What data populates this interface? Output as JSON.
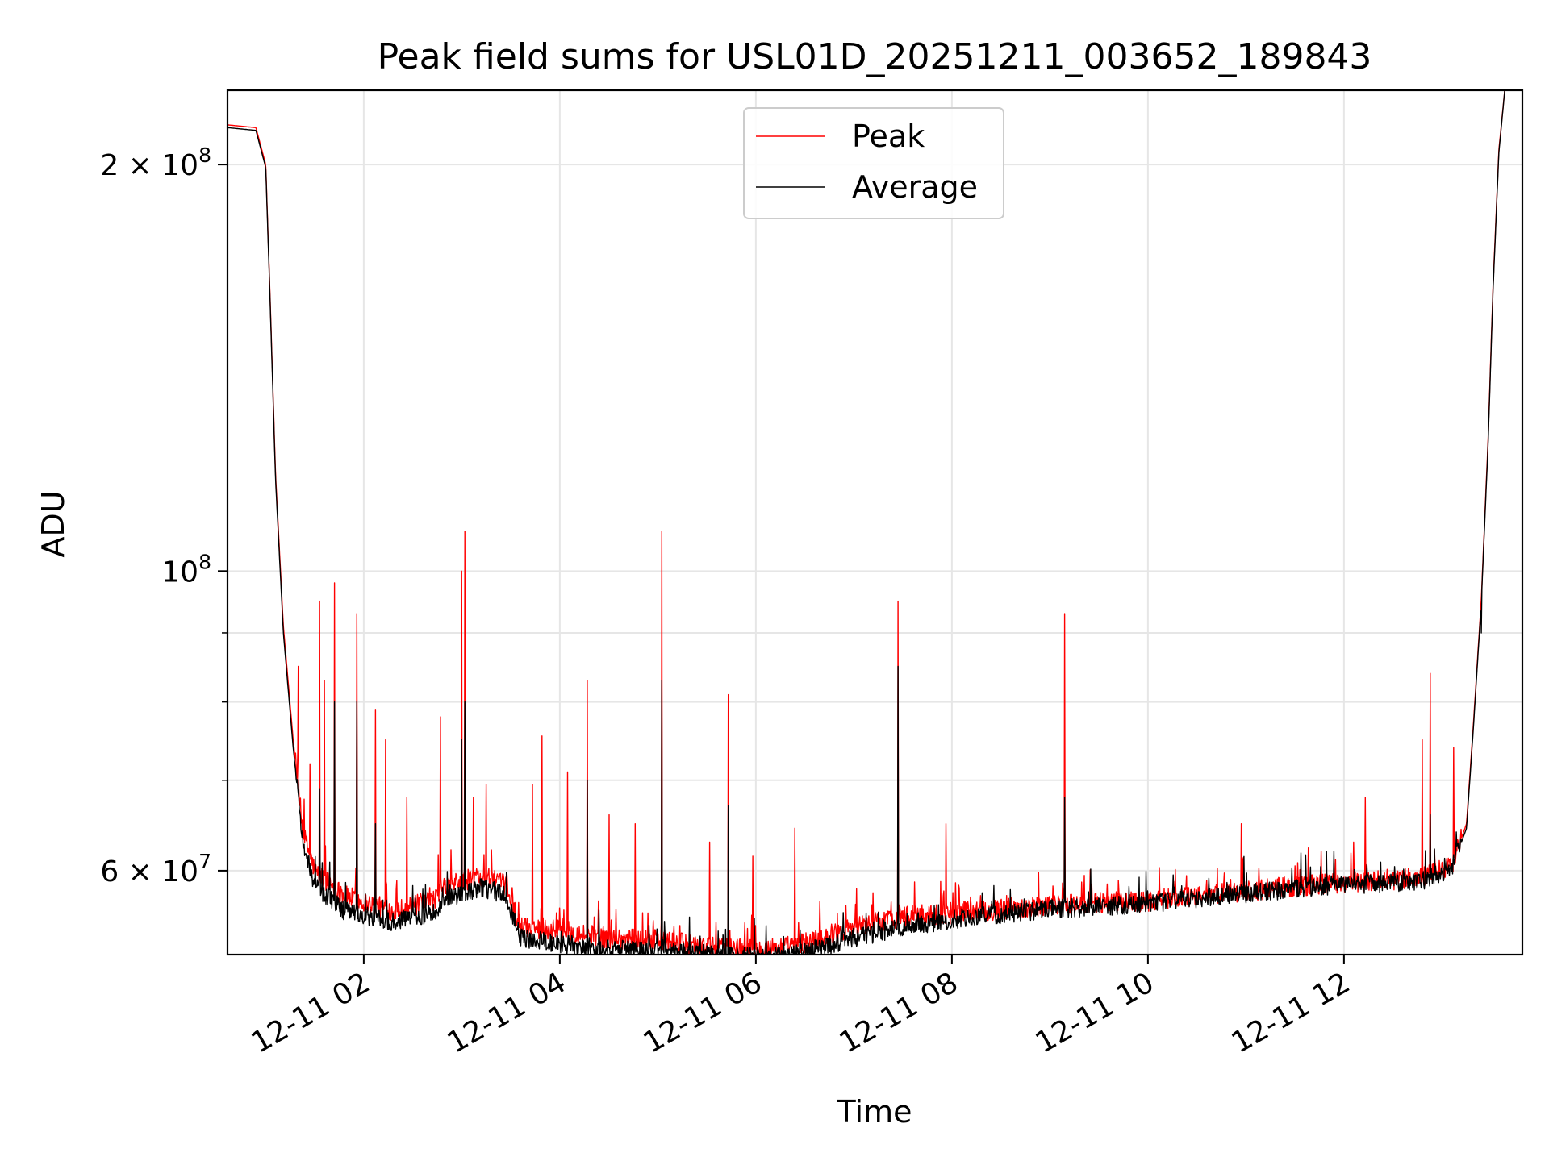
{
  "chart_data": {
    "type": "line",
    "title": "Peak field sums for USL01D_20251211_003652_189843",
    "xlabel": "Time",
    "ylabel": "ADU",
    "yscale": "log",
    "ylim": [
      52000000,
      227000000
    ],
    "xlim": [
      0.61,
      13.82
    ],
    "grid": true,
    "legend_position": "top-center",
    "x_ticks": [
      {
        "value": 2,
        "label": "12-11 02"
      },
      {
        "value": 4,
        "label": "12-11 04"
      },
      {
        "value": 6,
        "label": "12-11 06"
      },
      {
        "value": 8,
        "label": "12-11 08"
      },
      {
        "value": 10,
        "label": "12-11 10"
      },
      {
        "value": 12,
        "label": "12-11 12"
      }
    ],
    "y_major_ticks": [
      {
        "value": 60000000,
        "mantissa": "6",
        "base": "10",
        "exp": "7"
      },
      {
        "value": 100000000,
        "mantissa": "",
        "base": "10",
        "exp": "8"
      },
      {
        "value": 200000000,
        "mantissa": "2",
        "base": "10",
        "exp": "8"
      }
    ],
    "y_minor_grid": [
      70000000,
      80000000,
      90000000
    ],
    "colors": {
      "peak": "#ff0000",
      "average": "#000000",
      "grid": "#e6e6e6"
    },
    "series": [
      {
        "name": "Peak",
        "color": "#ff0000",
        "baseline": [
          [
            0.61,
            214000000.0
          ],
          [
            0.9,
            213000000.0
          ],
          [
            1.0,
            200000000.0
          ],
          [
            1.05,
            155000000.0
          ],
          [
            1.1,
            118000000.0
          ],
          [
            1.18,
            91000000.0
          ],
          [
            1.28,
            75000000.0
          ],
          [
            1.38,
            64000000.0
          ],
          [
            1.5,
            60000000.0
          ],
          [
            1.8,
            57500000.0
          ],
          [
            2.3,
            56000000.0
          ],
          [
            2.7,
            57000000.0
          ],
          [
            2.85,
            58500000.0
          ],
          [
            3.2,
            59500000.0
          ],
          [
            3.45,
            58500000.0
          ],
          [
            3.6,
            54500000.0
          ],
          [
            4.0,
            54200000.0
          ],
          [
            4.5,
            53500000.0
          ],
          [
            5.0,
            53300000.0
          ],
          [
            5.5,
            52700000.0
          ],
          [
            6.0,
            52500000.0
          ],
          [
            6.4,
            52800000.0
          ],
          [
            7.0,
            54500000.0
          ],
          [
            7.5,
            55500000.0
          ],
          [
            8.0,
            55800000.0
          ],
          [
            9.0,
            56600000.0
          ],
          [
            10.0,
            57000000.0
          ],
          [
            11.0,
            58000000.0
          ],
          [
            11.8,
            58700000.0
          ],
          [
            12.8,
            59300000.0
          ],
          [
            13.1,
            60500000.0
          ],
          [
            13.25,
            65000000.0
          ],
          [
            13.32,
            77000000.0
          ],
          [
            13.4,
            95000000.0
          ],
          [
            13.47,
            125000000.0
          ],
          [
            13.52,
            162000000.0
          ],
          [
            13.58,
            205000000.0
          ],
          [
            13.64,
            227000000.0
          ]
        ],
        "noise": 0.018,
        "spikes": [
          [
            1.33,
            85000000.0
          ],
          [
            1.45,
            72000000.0
          ],
          [
            1.55,
            95000000.0
          ],
          [
            1.6,
            83000000.0
          ],
          [
            1.7,
            98000000.0
          ],
          [
            1.93,
            93000000.0
          ],
          [
            2.12,
            79000000.0
          ],
          [
            2.22,
            75000000.0
          ],
          [
            2.44,
            68000000.0
          ],
          [
            2.78,
            78000000.0
          ],
          [
            3.0,
            100000000.0
          ],
          [
            3.03,
            107000000.0
          ],
          [
            3.12,
            68000000.0
          ],
          [
            3.25,
            69500000.0
          ],
          [
            3.72,
            69500000.0
          ],
          [
            3.82,
            75500000.0
          ],
          [
            4.08,
            71000000.0
          ],
          [
            4.28,
            83000000.0
          ],
          [
            4.5,
            66000000.0
          ],
          [
            4.77,
            65000000.0
          ],
          [
            5.04,
            107000000.0
          ],
          [
            5.53,
            63000000.0
          ],
          [
            5.72,
            81000000.0
          ],
          [
            5.97,
            61500000.0
          ],
          [
            6.4,
            64500000.0
          ],
          [
            7.45,
            95000000.0
          ],
          [
            7.94,
            65000000.0
          ],
          [
            9.15,
            93000000.0
          ],
          [
            9.7,
            59000000.0
          ],
          [
            10.95,
            65000000.0
          ],
          [
            11.5,
            60500000.0
          ],
          [
            12.1,
            63000000.0
          ],
          [
            12.22,
            68000000.0
          ],
          [
            12.8,
            75000000.0
          ],
          [
            12.88,
            84000000.0
          ],
          [
            13.12,
            74000000.0
          ]
        ]
      },
      {
        "name": "Average",
        "color": "#000000",
        "baseline": [
          [
            0.61,
            213000000.0
          ],
          [
            0.9,
            212000000.0
          ],
          [
            1.0,
            199000000.0
          ],
          [
            1.05,
            154000000.0
          ],
          [
            1.1,
            117000000.0
          ],
          [
            1.18,
            90000000.0
          ],
          [
            1.28,
            74000000.0
          ],
          [
            1.38,
            63000000.0
          ],
          [
            1.5,
            58500000.0
          ],
          [
            1.8,
            56000000.0
          ],
          [
            2.3,
            55000000.0
          ],
          [
            2.7,
            55800000.0
          ],
          [
            2.85,
            57200000.0
          ],
          [
            3.2,
            58300000.0
          ],
          [
            3.45,
            57500000.0
          ],
          [
            3.6,
            53500000.0
          ],
          [
            4.0,
            53000000.0
          ],
          [
            4.5,
            52500000.0
          ],
          [
            5.0,
            52300000.0
          ],
          [
            5.5,
            52000000.0
          ],
          [
            6.0,
            51800000.0
          ],
          [
            6.4,
            52000000.0
          ],
          [
            7.0,
            53500000.0
          ],
          [
            7.5,
            54500000.0
          ],
          [
            8.0,
            55200000.0
          ],
          [
            9.0,
            56200000.0
          ],
          [
            10.0,
            56700000.0
          ],
          [
            11.0,
            57700000.0
          ],
          [
            11.8,
            58400000.0
          ],
          [
            12.8,
            59000000.0
          ],
          [
            13.1,
            60200000.0
          ],
          [
            13.25,
            64500000.0
          ],
          [
            13.32,
            76500000.0
          ],
          [
            13.4,
            94500000.0
          ],
          [
            13.47,
            124000000.0
          ],
          [
            13.52,
            161000000.0
          ],
          [
            13.58,
            204000000.0
          ],
          [
            13.64,
            227000000.0
          ]
        ],
        "noise": 0.016,
        "spikes": [
          [
            1.55,
            69000000.0
          ],
          [
            1.7,
            80000000.0
          ],
          [
            1.93,
            80000000.0
          ],
          [
            2.12,
            65000000.0
          ],
          [
            3.0,
            75000000.0
          ],
          [
            3.03,
            80000000.0
          ],
          [
            4.28,
            70000000.0
          ],
          [
            5.04,
            83000000.0
          ],
          [
            5.72,
            67000000.0
          ],
          [
            7.45,
            85000000.0
          ],
          [
            9.15,
            68000000.0
          ],
          [
            12.88,
            66000000.0
          ],
          [
            13.4,
            90000000.0
          ]
        ]
      }
    ]
  }
}
